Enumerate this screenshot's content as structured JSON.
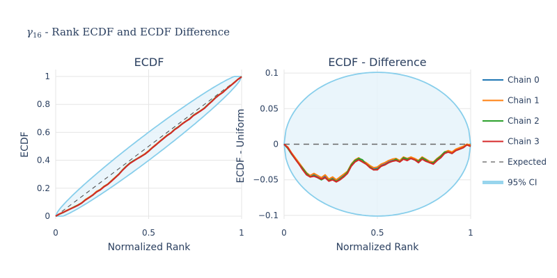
{
  "figure": {
    "suptitle_symbol": "γ",
    "suptitle_subscript": "16",
    "suptitle_text": " - Rank ECDF and ECDF Difference"
  },
  "colors": {
    "chain0": "#1f77b4",
    "chain1": "#ff7f0e",
    "chain2": "#2ca02c",
    "chain3": "#d62728",
    "expected": "#444444",
    "ci_line": "#87ceeb",
    "ci_fill": "#e6f3fa",
    "text": "#2a3f5f"
  },
  "chart_data": [
    {
      "type": "line",
      "title": "ECDF",
      "xlabel": "Normalized Rank",
      "ylabel": "ECDF",
      "xlim": [
        0,
        1
      ],
      "ylim": [
        -0.02,
        1.05
      ],
      "xticks": [
        0,
        0.5,
        1
      ],
      "xtick_labels": [
        "0",
        "0.5",
        "1"
      ],
      "yticks": [
        0,
        0.2,
        0.4,
        0.6,
        0.8,
        1
      ],
      "ytick_labels": [
        "0",
        "0.2",
        "0.4",
        "0.6",
        "0.8",
        "1"
      ],
      "grid": true
    },
    {
      "type": "line",
      "title": "ECDF - Difference",
      "xlabel": "Normalized Rank",
      "ylabel": "ECDF - Uniform",
      "xlim": [
        0,
        1
      ],
      "ylim": [
        -0.105,
        0.105
      ],
      "xticks": [
        0,
        0.5,
        1
      ],
      "xtick_labels": [
        "0",
        "0.5",
        "1"
      ],
      "yticks": [
        -0.1,
        -0.05,
        0,
        0.05,
        0.1
      ],
      "ytick_labels": [
        "−0.1",
        "−0.05",
        "0",
        "0.05",
        "0.1"
      ],
      "grid": true
    }
  ],
  "diff_series": {
    "x": [
      0,
      0.02,
      0.04,
      0.06,
      0.08,
      0.1,
      0.12,
      0.14,
      0.16,
      0.18,
      0.2,
      0.22,
      0.24,
      0.26,
      0.28,
      0.3,
      0.32,
      0.34,
      0.36,
      0.38,
      0.4,
      0.42,
      0.44,
      0.46,
      0.48,
      0.5,
      0.52,
      0.54,
      0.56,
      0.58,
      0.6,
      0.62,
      0.64,
      0.66,
      0.68,
      0.7,
      0.72,
      0.74,
      0.76,
      0.78,
      0.8,
      0.82,
      0.84,
      0.86,
      0.88,
      0.9,
      0.92,
      0.94,
      0.96,
      0.98,
      1.0
    ],
    "chains": [
      {
        "name": "Chain 0",
        "color_key": "chain0",
        "values": [
          0,
          -0.005,
          -0.013,
          -0.02,
          -0.027,
          -0.035,
          -0.042,
          -0.045,
          -0.043,
          -0.046,
          -0.048,
          -0.045,
          -0.05,
          -0.048,
          -0.051,
          -0.048,
          -0.044,
          -0.04,
          -0.03,
          -0.024,
          -0.021,
          -0.024,
          -0.027,
          -0.031,
          -0.035,
          -0.034,
          -0.03,
          -0.028,
          -0.025,
          -0.023,
          -0.022,
          -0.024,
          -0.02,
          -0.022,
          -0.019,
          -0.021,
          -0.025,
          -0.02,
          -0.023,
          -0.025,
          -0.027,
          -0.022,
          -0.018,
          -0.012,
          -0.01,
          -0.012,
          -0.008,
          -0.006,
          -0.004,
          0,
          -0.002
        ]
      },
      {
        "name": "Chain 1",
        "color_key": "chain1",
        "values": [
          0,
          -0.004,
          -0.012,
          -0.019,
          -0.026,
          -0.033,
          -0.04,
          -0.044,
          -0.041,
          -0.044,
          -0.047,
          -0.043,
          -0.049,
          -0.046,
          -0.05,
          -0.046,
          -0.042,
          -0.038,
          -0.028,
          -0.022,
          -0.019,
          -0.023,
          -0.026,
          -0.03,
          -0.033,
          -0.032,
          -0.028,
          -0.026,
          -0.023,
          -0.021,
          -0.02,
          -0.023,
          -0.018,
          -0.02,
          -0.018,
          -0.02,
          -0.023,
          -0.018,
          -0.021,
          -0.024,
          -0.025,
          -0.02,
          -0.016,
          -0.011,
          -0.009,
          -0.011,
          -0.007,
          -0.005,
          -0.003,
          0,
          -0.001
        ]
      },
      {
        "name": "Chain 2",
        "color_key": "chain2",
        "values": [
          0,
          -0.006,
          -0.014,
          -0.021,
          -0.028,
          -0.034,
          -0.041,
          -0.046,
          -0.044,
          -0.047,
          -0.05,
          -0.047,
          -0.051,
          -0.049,
          -0.052,
          -0.049,
          -0.045,
          -0.039,
          -0.029,
          -0.023,
          -0.02,
          -0.022,
          -0.028,
          -0.032,
          -0.036,
          -0.035,
          -0.031,
          -0.029,
          -0.026,
          -0.024,
          -0.021,
          -0.025,
          -0.019,
          -0.021,
          -0.02,
          -0.022,
          -0.024,
          -0.019,
          -0.022,
          -0.026,
          -0.026,
          -0.021,
          -0.017,
          -0.011,
          -0.011,
          -0.013,
          -0.009,
          -0.007,
          -0.005,
          -0.001,
          -0.003
        ]
      },
      {
        "name": "Chain 3",
        "color_key": "chain3",
        "values": [
          0,
          -0.005,
          -0.013,
          -0.021,
          -0.028,
          -0.036,
          -0.043,
          -0.046,
          -0.045,
          -0.047,
          -0.049,
          -0.047,
          -0.052,
          -0.05,
          -0.053,
          -0.05,
          -0.046,
          -0.041,
          -0.031,
          -0.025,
          -0.022,
          -0.025,
          -0.028,
          -0.033,
          -0.036,
          -0.036,
          -0.031,
          -0.029,
          -0.026,
          -0.024,
          -0.023,
          -0.025,
          -0.021,
          -0.023,
          -0.02,
          -0.022,
          -0.026,
          -0.021,
          -0.024,
          -0.026,
          -0.028,
          -0.023,
          -0.019,
          -0.013,
          -0.011,
          -0.013,
          -0.009,
          -0.007,
          -0.005,
          -0.001,
          -0.003
        ]
      }
    ]
  },
  "expected": {
    "name": "Expected",
    "ecdf_line": [
      [
        0,
        0
      ],
      [
        1,
        1
      ]
    ],
    "diff_line": [
      [
        0,
        0
      ],
      [
        1,
        0
      ]
    ]
  },
  "ci": {
    "name": "95% CI",
    "max_halfwidth": 0.101
  },
  "legend": {
    "placement": "right",
    "items": [
      {
        "label": "Chain 0",
        "color_key": "chain0",
        "style": "solid"
      },
      {
        "label": "Chain 1",
        "color_key": "chain1",
        "style": "solid"
      },
      {
        "label": "Chain 2",
        "color_key": "chain2",
        "style": "solid"
      },
      {
        "label": "Chain 3",
        "color_key": "chain3",
        "style": "solid"
      },
      {
        "label": "Expected",
        "color_key": "expected",
        "style": "dash"
      },
      {
        "label": "95% CI",
        "color_key": "ci_line",
        "style": "ci"
      }
    ]
  }
}
